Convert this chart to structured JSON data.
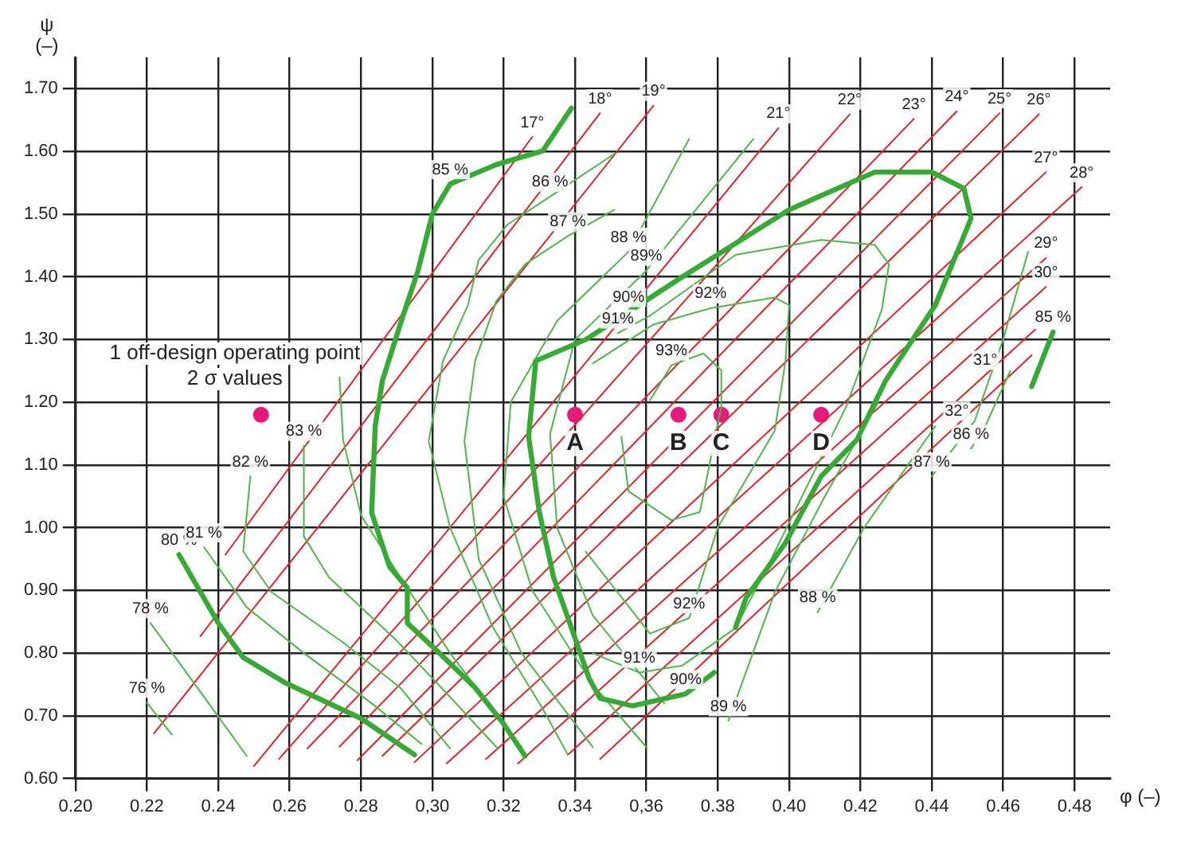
{
  "chart_data": {
    "type": "line",
    "xlabel": "φ (–)",
    "ylabel": "ψ (–)",
    "xlim": [
      0.2,
      0.49
    ],
    "ylim": [
      0.6,
      1.75
    ],
    "xticks": [
      {
        "value": 0.2,
        "label": "0.20"
      },
      {
        "value": 0.22,
        "label": "0.22"
      },
      {
        "value": 0.24,
        "label": "0.24"
      },
      {
        "value": 0.26,
        "label": "0.26"
      },
      {
        "value": 0.28,
        "label": "0.28"
      },
      {
        "value": 0.3,
        "label": "0,30"
      },
      {
        "value": 0.32,
        "label": "0.32"
      },
      {
        "value": 0.34,
        "label": "0.34"
      },
      {
        "value": 0.36,
        "label": "0,36"
      },
      {
        "value": 0.38,
        "label": "0.38"
      },
      {
        "value": 0.4,
        "label": "0.40"
      },
      {
        "value": 0.42,
        "label": "0.42"
      },
      {
        "value": 0.44,
        "label": "0.44"
      },
      {
        "value": 0.46,
        "label": "0.46"
      },
      {
        "value": 0.48,
        "label": "0.48"
      }
    ],
    "yticks": [
      {
        "value": 0.6,
        "label": "0.60"
      },
      {
        "value": 0.7,
        "label": "0.70"
      },
      {
        "value": 0.8,
        "label": "0.80"
      },
      {
        "value": 0.9,
        "label": "0.90"
      },
      {
        "value": 1.0,
        "label": "1.00"
      },
      {
        "value": 1.1,
        "label": "1.10"
      },
      {
        "value": 1.2,
        "label": "1.20"
      },
      {
        "value": 1.3,
        "label": "1.30"
      },
      {
        "value": 1.4,
        "label": "1.40"
      },
      {
        "value": 1.5,
        "label": "1.50"
      },
      {
        "value": 1.6,
        "label": "1.60"
      },
      {
        "value": 1.7,
        "label": "1.70"
      }
    ],
    "grid": true,
    "legend": false,
    "marker": "none",
    "line_style": "solid",
    "series": [
      {
        "color": "#37a935",
        "x": [
          0.339,
          0.331,
          0.318,
          0.305,
          0.3,
          0.296,
          0.291,
          0.286,
          0.284,
          0.283,
          0.288,
          0.293,
          0.293,
          0.302,
          0.312,
          0.32,
          0.326
        ],
        "values": [
          1.669,
          1.601,
          1.579,
          1.548,
          1.5,
          1.41,
          1.324,
          1.234,
          1.162,
          1.024,
          0.938,
          0.904,
          0.848,
          0.8,
          0.745,
          0.687,
          0.636
        ]
      },
      {
        "color": "#37a935",
        "x": [
          0.229,
          0.24,
          0.247,
          0.259,
          0.28,
          0.295
        ],
        "values": [
          0.957,
          0.848,
          0.793,
          0.752,
          0.696,
          0.638
        ]
      },
      {
        "color": "#37a935",
        "x": [
          0.474,
          0.468
        ],
        "values": [
          1.312,
          1.225
        ]
      },
      {
        "color": "#37a935",
        "x": [
          0.379,
          0.371,
          0.356,
          0.347,
          0.344,
          0.34,
          0.334,
          0.33,
          0.327,
          0.329,
          0.343,
          0.355,
          0.369,
          0.4,
          0.424,
          0.44,
          0.449,
          0.451,
          0.441,
          0.427,
          0.419,
          0.409,
          0.399,
          0.388,
          0.385
        ],
        "values": [
          0.769,
          0.735,
          0.716,
          0.728,
          0.759,
          0.824,
          0.921,
          1.025,
          1.145,
          1.266,
          1.3,
          1.344,
          1.396,
          1.507,
          1.567,
          1.567,
          1.541,
          1.493,
          1.355,
          1.234,
          1.14,
          1.082,
          0.976,
          0.889,
          0.841
        ]
      },
      {
        "color": "#4cb84a",
        "x": [
          0.22,
          0.227
        ],
        "values": [
          0.721,
          0.67
        ]
      },
      {
        "color": "#4cb84a",
        "x": [
          0.221,
          0.24,
          0.248
        ],
        "values": [
          0.848,
          0.699,
          0.636
        ]
      },
      {
        "color": "#4cb84a",
        "x": [
          0.236,
          0.248,
          0.264,
          0.283,
          0.297
        ],
        "values": [
          0.969,
          0.873,
          0.8,
          0.72,
          0.655
        ]
      },
      {
        "color": "#4cb84a",
        "x": [
          0.249,
          0.247,
          0.255,
          0.275,
          0.291,
          0.305
        ],
        "values": [
          1.082,
          0.962,
          0.897,
          0.817,
          0.745,
          0.648
        ]
      },
      {
        "color": "#4cb84a",
        "x": [
          0.264,
          0.264,
          0.271,
          0.29,
          0.305,
          0.318
        ],
        "values": [
          1.131,
          0.986,
          0.921,
          0.82,
          0.73,
          0.65
        ]
      },
      {
        "color": "#4cb84a",
        "x": [
          0.274,
          0.275,
          0.28,
          0.29,
          0.305,
          0.325
        ],
        "values": [
          1.24,
          1.14,
          1.02,
          0.93,
          0.8,
          0.65
        ]
      },
      {
        "color": "#4cb84a",
        "x": [
          0.351,
          0.333,
          0.321,
          0.313,
          0.31,
          0.303,
          0.299,
          0.305,
          0.317,
          0.331,
          0.338
        ],
        "values": [
          1.596,
          1.528,
          1.483,
          1.427,
          1.355,
          1.266,
          1.138,
          1.0,
          0.841,
          0.711,
          0.638
        ]
      },
      {
        "color": "#4cb84a",
        "x": [
          0.451,
          0.455,
          0.462
        ],
        "values": [
          1.126,
          1.162,
          1.25
        ]
      },
      {
        "color": "#4cb84a",
        "x": [
          0.351,
          0.338,
          0.326,
          0.318,
          0.312,
          0.309,
          0.313,
          0.325,
          0.345
        ],
        "values": [
          1.507,
          1.465,
          1.42,
          1.362,
          1.266,
          1.138,
          0.95,
          0.8,
          0.65
        ]
      },
      {
        "color": "#4cb84a",
        "x": [
          0.372,
          0.355,
          0.335,
          0.322,
          0.32,
          0.328,
          0.345,
          0.36
        ],
        "values": [
          1.62,
          1.44,
          1.33,
          1.2,
          1.05,
          0.9,
          0.75,
          0.65
        ]
      },
      {
        "color": "#4cb84a",
        "x": [
          0.39,
          0.36,
          0.34,
          0.333,
          0.335,
          0.345,
          0.365
        ],
        "values": [
          1.62,
          1.41,
          1.3,
          1.15,
          1.0,
          0.86,
          0.72
        ]
      },
      {
        "color": "#4cb84a",
        "x": [
          0.44,
          0.452,
          0.46,
          0.467
        ],
        "values": [
          1.082,
          1.17,
          1.3,
          1.44
        ]
      },
      {
        "color": "#4cb84a",
        "x": [
          0.408,
          0.421,
          0.441
        ],
        "values": [
          0.865,
          1.0,
          1.162
        ]
      },
      {
        "color": "#4cb84a",
        "x": [
          0.383,
          0.396,
          0.41,
          0.425
        ],
        "values": [
          0.692,
          0.897,
          1.05,
          1.2
        ]
      },
      {
        "color": "#4cb84a",
        "x": [
          0.345,
          0.358,
          0.37,
          0.385,
          0.395,
          0.416,
          0.426,
          0.428,
          0.424,
          0.409,
          0.385,
          0.361,
          0.352
        ],
        "values": [
          0.8,
          0.769,
          0.78,
          0.84,
          0.95,
          1.193,
          1.348,
          1.42,
          1.451,
          1.459,
          1.435,
          1.338,
          1.31
        ]
      },
      {
        "color": "#4cb84a",
        "x": [
          0.343,
          0.361,
          0.372,
          0.38,
          0.396,
          0.399,
          0.4,
          0.396,
          0.378,
          0.362,
          0.345
        ],
        "values": [
          0.962,
          0.831,
          0.856,
          1.0,
          1.155,
          1.266,
          1.355,
          1.367,
          1.35,
          1.324,
          1.262
        ]
      },
      {
        "color": "#4cb84a",
        "x": [
          0.361,
          0.367,
          0.376,
          0.381,
          0.381,
          0.375,
          0.367,
          0.355,
          0.353
        ],
        "values": [
          1.203,
          1.259,
          1.278,
          1.251,
          1.193,
          1.025,
          1.012,
          1.058,
          1.145
        ]
      },
      {
        "color": "#e8202a",
        "x": [
          0.242,
          0.328
        ],
        "values": [
          0.957,
          1.623
        ]
      },
      {
        "color": "#e8202a",
        "x": [
          0.235,
          0.347
        ],
        "values": [
          0.827,
          1.661
        ]
      },
      {
        "color": "#e8202a",
        "x": [
          0.222,
          0.362
        ],
        "values": [
          0.672,
          1.673
        ]
      },
      {
        "color": "#e8202a",
        "x": [
          0.25,
          0.397
        ],
        "values": [
          0.62,
          1.637
        ]
      },
      {
        "color": "#e8202a",
        "x": [
          0.257,
          0.417
        ],
        "values": [
          0.631,
          1.659
        ]
      },
      {
        "color": "#e8202a",
        "x": [
          0.265,
          0.435
        ],
        "values": [
          0.648,
          1.652
        ]
      },
      {
        "color": "#e8202a",
        "x": [
          0.274,
          0.447
        ],
        "values": [
          0.651,
          1.664
        ]
      },
      {
        "color": "#e8202a",
        "x": [
          0.279,
          0.459
        ],
        "values": [
          0.629,
          1.661
        ]
      },
      {
        "color": "#e8202a",
        "x": [
          0.286,
          0.47
        ],
        "values": [
          0.636,
          1.659
        ]
      },
      {
        "color": "#e8202a",
        "x": [
          0.295,
          0.472
        ],
        "values": [
          0.626,
          1.567
        ]
      },
      {
        "color": "#e8202a",
        "x": [
          0.304,
          0.482
        ],
        "values": [
          0.624,
          1.543
        ]
      },
      {
        "color": "#e8202a",
        "x": [
          0.315,
          0.472
        ],
        "values": [
          0.631,
          1.43
        ]
      },
      {
        "color": "#e8202a",
        "x": [
          0.324,
          0.472
        ],
        "values": [
          0.624,
          1.384
        ]
      },
      {
        "color": "#e8202a",
        "x": [
          0.338,
          0.469
        ],
        "values": [
          0.638,
          1.316
        ]
      },
      {
        "color": "#e8202a",
        "x": [
          0.347,
          0.468
        ],
        "values": [
          0.631,
          1.275
        ]
      },
      {
        "type": "scatter",
        "marker": "circle",
        "color": "#e6197d",
        "x": [
          0.252,
          0.34,
          0.369,
          0.381,
          0.409
        ],
        "values": [
          1.18,
          1.18,
          1.18,
          1.18,
          1.18
        ]
      }
    ],
    "annotations": [
      "1 off-design operating point",
      "2 σ values",
      {
        "text": "A",
        "x": 0.34,
        "y": 1.18
      },
      {
        "text": "B",
        "x": 0.369,
        "y": 1.18
      },
      {
        "text": "C",
        "x": 0.381,
        "y": 1.18
      },
      {
        "text": "D",
        "x": 0.409,
        "y": 1.18
      },
      {
        "text": "76 %",
        "x": 0.22,
        "y": 0.721
      },
      {
        "text": "78 %",
        "x": 0.221,
        "y": 0.848
      },
      {
        "text": "80 %",
        "x": 0.229,
        "y": 0.957
      },
      {
        "text": "81 %",
        "x": 0.236,
        "y": 0.969
      },
      {
        "text": "82 %",
        "x": 0.249,
        "y": 1.082
      },
      {
        "text": "83 %",
        "x": 0.264,
        "y": 1.131
      },
      {
        "text": "85 %",
        "x": 0.305,
        "y": 1.548
      },
      {
        "text": "86 %",
        "x": 0.333,
        "y": 1.528
      },
      {
        "text": "87 %",
        "x": 0.338,
        "y": 1.465
      },
      {
        "text": "88 %",
        "x": 0.355,
        "y": 1.44
      },
      {
        "text": "89%",
        "x": 0.36,
        "y": 1.41
      },
      {
        "text": "90%",
        "x": 0.355,
        "y": 1.344
      },
      {
        "text": "91%",
        "x": 0.352,
        "y": 1.31
      },
      {
        "text": "92%",
        "x": 0.378,
        "y": 1.35
      },
      {
        "text": "93%",
        "x": 0.367,
        "y": 1.259
      },
      {
        "text": "85 %",
        "x": 0.474,
        "y": 1.312
      },
      {
        "text": "86 %",
        "x": 0.451,
        "y": 1.126
      },
      {
        "text": "87 %",
        "x": 0.44,
        "y": 1.082
      },
      {
        "text": "88 %",
        "x": 0.408,
        "y": 0.865
      },
      {
        "text": "89 %",
        "x": 0.383,
        "y": 0.692
      },
      {
        "text": "92%",
        "x": 0.372,
        "y": 0.856
      },
      {
        "text": "91%",
        "x": 0.358,
        "y": 0.769
      },
      {
        "text": "90%",
        "x": 0.371,
        "y": 0.735
      },
      {
        "text": "17°",
        "x": 0.328,
        "y": 1.623
      },
      {
        "text": "18°",
        "x": 0.347,
        "y": 1.661
      },
      {
        "text": "19°",
        "x": 0.362,
        "y": 1.673
      },
      {
        "text": "21°",
        "x": 0.397,
        "y": 1.637
      },
      {
        "text": "22°",
        "x": 0.417,
        "y": 1.659
      },
      {
        "text": "23°",
        "x": 0.435,
        "y": 1.652
      },
      {
        "text": "24°",
        "x": 0.447,
        "y": 1.664
      },
      {
        "text": "25°",
        "x": 0.459,
        "y": 1.661
      },
      {
        "text": "26°",
        "x": 0.47,
        "y": 1.659
      },
      {
        "text": "27°",
        "x": 0.472,
        "y": 1.567
      },
      {
        "text": "28°",
        "x": 0.482,
        "y": 1.543
      },
      {
        "text": "29°",
        "x": 0.472,
        "y": 1.43
      },
      {
        "text": "30°",
        "x": 0.472,
        "y": 1.384
      },
      {
        "text": "31°",
        "x": 0.455,
        "y": 1.244
      },
      {
        "text": "32°",
        "x": 0.447,
        "y": 1.163
      }
    ]
  }
}
